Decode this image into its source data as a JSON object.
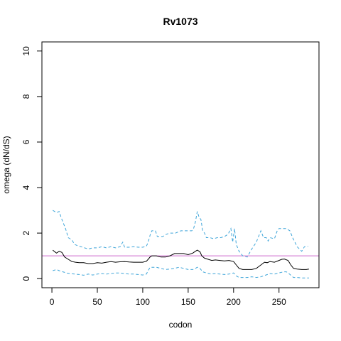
{
  "chart_data": {
    "type": "line",
    "title": "Rv1073",
    "xlabel": "codon",
    "ylabel": "omega (dN/dS)",
    "xlim": [
      -11,
      294
    ],
    "ylim": [
      -0.4,
      10.4
    ],
    "xticks": [
      0,
      50,
      100,
      150,
      200,
      250
    ],
    "yticks": [
      0,
      2,
      4,
      6,
      8,
      10
    ],
    "grid": false,
    "reference_line": {
      "y": 1,
      "color": "#cc66cc"
    },
    "series": [
      {
        "role": "estimate",
        "color": "#000000",
        "dash": "solid",
        "x": [
          1,
          5,
          8,
          11,
          14,
          18,
          22,
          26,
          30,
          35,
          40,
          45,
          50,
          55,
          60,
          65,
          70,
          75,
          80,
          85,
          90,
          95,
          100,
          104,
          106,
          108,
          110,
          115,
          120,
          125,
          130,
          135,
          140,
          145,
          150,
          155,
          158,
          160,
          163,
          165,
          168,
          172,
          176,
          180,
          185,
          190,
          195,
          200,
          203,
          206,
          210,
          215,
          220,
          225,
          230,
          234,
          237,
          240,
          245,
          250,
          253,
          256,
          260,
          263,
          266,
          270,
          275,
          280,
          283
        ],
        "y": [
          1.25,
          1.12,
          1.2,
          1.15,
          0.95,
          0.85,
          0.75,
          0.72,
          0.7,
          0.7,
          0.66,
          0.66,
          0.7,
          0.68,
          0.72,
          0.75,
          0.72,
          0.74,
          0.75,
          0.73,
          0.72,
          0.72,
          0.72,
          0.76,
          0.85,
          0.95,
          1.0,
          1.0,
          0.95,
          0.95,
          1.0,
          1.1,
          1.1,
          1.1,
          1.05,
          1.12,
          1.2,
          1.25,
          1.18,
          1.0,
          0.9,
          0.85,
          0.8,
          0.82,
          0.8,
          0.78,
          0.8,
          0.75,
          0.6,
          0.45,
          0.4,
          0.4,
          0.4,
          0.45,
          0.6,
          0.72,
          0.7,
          0.75,
          0.72,
          0.8,
          0.85,
          0.86,
          0.8,
          0.6,
          0.45,
          0.42,
          0.4,
          0.4,
          0.42
        ]
      },
      {
        "role": "upper-bound",
        "color": "#3ea5d9",
        "dash": "dashed",
        "x": [
          1,
          5,
          8,
          10,
          12,
          15,
          18,
          22,
          25,
          28,
          32,
          36,
          40,
          45,
          50,
          55,
          60,
          65,
          70,
          75,
          78,
          80,
          85,
          90,
          95,
          100,
          104,
          106,
          108,
          110,
          114,
          116,
          118,
          122,
          126,
          130,
          136,
          142,
          148,
          154,
          156,
          158,
          160,
          162,
          164,
          166,
          168,
          170,
          174,
          178,
          182,
          186,
          190,
          194,
          197,
          199,
          201,
          203,
          206,
          210,
          215,
          220,
          225,
          230,
          233,
          236,
          238,
          240,
          245,
          248,
          250,
          254,
          258,
          262,
          265,
          270,
          275,
          278,
          282
        ],
        "y": [
          3.0,
          2.9,
          2.95,
          2.7,
          2.5,
          2.2,
          1.8,
          1.7,
          1.5,
          1.45,
          1.4,
          1.35,
          1.3,
          1.35,
          1.35,
          1.4,
          1.35,
          1.4,
          1.35,
          1.4,
          1.6,
          1.38,
          1.38,
          1.4,
          1.38,
          1.38,
          1.42,
          1.6,
          1.9,
          2.1,
          2.1,
          1.85,
          1.85,
          1.85,
          1.95,
          2.0,
          2.0,
          2.1,
          2.1,
          2.1,
          2.2,
          2.5,
          2.95,
          2.7,
          2.6,
          2.1,
          2.0,
          1.8,
          1.8,
          1.75,
          1.8,
          1.8,
          1.85,
          1.95,
          2.2,
          1.6,
          2.2,
          1.5,
          1.2,
          1.0,
          0.95,
          1.3,
          1.6,
          2.1,
          1.8,
          1.8,
          1.65,
          1.8,
          1.75,
          2.1,
          2.2,
          2.2,
          2.2,
          2.1,
          1.8,
          1.4,
          1.2,
          1.4,
          1.42
        ]
      },
      {
        "role": "lower-bound",
        "color": "#3ea5d9",
        "dash": "dashed",
        "x": [
          1,
          5,
          8,
          12,
          16,
          20,
          25,
          30,
          35,
          40,
          45,
          50,
          55,
          60,
          65,
          70,
          75,
          80,
          85,
          90,
          95,
          100,
          104,
          106,
          108,
          110,
          115,
          120,
          125,
          130,
          135,
          140,
          145,
          150,
          155,
          158,
          160,
          163,
          166,
          170,
          175,
          180,
          185,
          190,
          195,
          200,
          203,
          206,
          210,
          215,
          220,
          225,
          230,
          235,
          240,
          245,
          250,
          255,
          258,
          260,
          263,
          266,
          270,
          275,
          280,
          283
        ],
        "y": [
          0.35,
          0.4,
          0.35,
          0.3,
          0.25,
          0.22,
          0.2,
          0.18,
          0.15,
          0.2,
          0.16,
          0.2,
          0.22,
          0.2,
          0.22,
          0.25,
          0.25,
          0.22,
          0.2,
          0.2,
          0.18,
          0.16,
          0.2,
          0.35,
          0.5,
          0.5,
          0.5,
          0.45,
          0.4,
          0.42,
          0.45,
          0.5,
          0.45,
          0.4,
          0.4,
          0.45,
          0.5,
          0.45,
          0.3,
          0.25,
          0.2,
          0.22,
          0.2,
          0.18,
          0.2,
          0.25,
          0.12,
          0.05,
          0.05,
          0.05,
          0.08,
          0.05,
          0.08,
          0.15,
          0.22,
          0.2,
          0.25,
          0.3,
          0.3,
          0.25,
          0.15,
          0.05,
          0.05,
          0.03,
          0.03,
          0.03
        ]
      }
    ]
  }
}
